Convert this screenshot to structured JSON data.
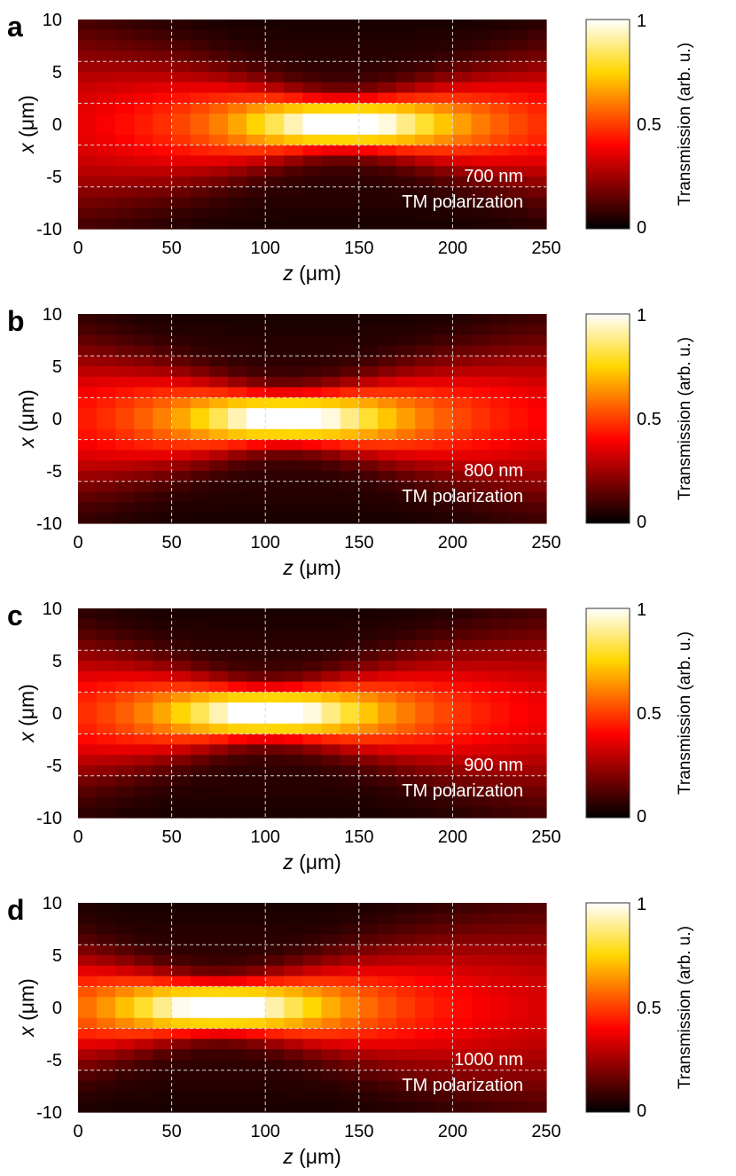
{
  "colorbar_label": "Transmission (arb. u.)",
  "x_axis_label_var": "z",
  "x_axis_label_unit": "(μm)",
  "y_axis_label_var": "x",
  "y_axis_label_unit": "(μm)",
  "colors": {
    "colormap": [
      "#000000",
      "#ff0000",
      "#ffd700",
      "#ffffff"
    ],
    "grid": "#d9d9d9",
    "text": "#000000"
  },
  "chart_data": [
    {
      "panel": "a",
      "type": "heatmap",
      "title": "",
      "xlabel": "z (μm)",
      "ylabel": "x (μm)",
      "xlim": [
        0,
        250
      ],
      "ylim": [
        -10,
        10
      ],
      "x_ticks": [
        0,
        50,
        100,
        150,
        200,
        250
      ],
      "y_ticks": [
        -10,
        -5,
        0,
        5,
        10
      ],
      "x_tick_labels": [
        "0",
        "50",
        "100",
        "150",
        "200",
        "250"
      ],
      "y_tick_labels": [
        "-10",
        "-5",
        "0",
        "5",
        "10"
      ],
      "grid_lines_x": [
        50,
        100,
        150,
        200
      ],
      "grid_lines_y": [
        -6,
        -2,
        2,
        6
      ],
      "focus_z_um": 141,
      "peak_transmission": 1,
      "wavelength_label": "700 nm",
      "polarization_label": "TM polarization",
      "colorbar": {
        "range": [
          0,
          1
        ],
        "ticks": [
          "1",
          "0.5",
          "0"
        ]
      }
    },
    {
      "panel": "b",
      "type": "heatmap",
      "title": "",
      "xlabel": "z (μm)",
      "ylabel": "x (μm)",
      "xlim": [
        0,
        250
      ],
      "ylim": [
        -10,
        10
      ],
      "x_ticks": [
        0,
        50,
        100,
        150,
        200,
        250
      ],
      "y_ticks": [
        -10,
        -5,
        0,
        5,
        10
      ],
      "x_tick_labels": [
        "0",
        "50",
        "100",
        "150",
        "200",
        "250"
      ],
      "y_tick_labels": [
        "-10",
        "-5",
        "0",
        "5",
        "10"
      ],
      "grid_lines_x": [
        50,
        100,
        150,
        200
      ],
      "grid_lines_y": [
        -6,
        -2,
        2,
        6
      ],
      "focus_z_um": 111,
      "peak_transmission": 1,
      "wavelength_label": "800 nm",
      "polarization_label": "TM polarization",
      "colorbar": {
        "range": [
          0,
          1
        ],
        "ticks": [
          "1",
          "0.5",
          "0"
        ]
      }
    },
    {
      "panel": "c",
      "type": "heatmap",
      "title": "",
      "xlabel": "z (μm)",
      "ylabel": "x (μm)",
      "xlim": [
        0,
        250
      ],
      "ylim": [
        -10,
        10
      ],
      "x_ticks": [
        0,
        50,
        100,
        150,
        200,
        250
      ],
      "y_ticks": [
        -10,
        -5,
        0,
        5,
        10
      ],
      "x_tick_labels": [
        "0",
        "50",
        "100",
        "150",
        "200",
        "250"
      ],
      "y_tick_labels": [
        "-10",
        "-5",
        "0",
        "5",
        "10"
      ],
      "grid_lines_x": [
        50,
        100,
        150,
        200
      ],
      "grid_lines_y": [
        -6,
        -2,
        2,
        6
      ],
      "focus_z_um": 101,
      "peak_transmission": 1,
      "wavelength_label": "900 nm",
      "polarization_label": "TM polarization",
      "colorbar": {
        "range": [
          0,
          1
        ],
        "ticks": [
          "1",
          "0.5",
          "0"
        ]
      }
    },
    {
      "panel": "d",
      "type": "heatmap",
      "title": "",
      "xlabel": "z (μm)",
      "ylabel": "x (μm)",
      "xlim": [
        0,
        250
      ],
      "ylim": [
        -10,
        10
      ],
      "x_ticks": [
        0,
        50,
        100,
        150,
        200,
        250
      ],
      "y_ticks": [
        -10,
        -5,
        0,
        5,
        10
      ],
      "x_tick_labels": [
        "0",
        "50",
        "100",
        "150",
        "200",
        "250"
      ],
      "y_tick_labels": [
        "-10",
        "-5",
        "0",
        "5",
        "10"
      ],
      "grid_lines_x": [
        50,
        100,
        150,
        200
      ],
      "grid_lines_y": [
        -6,
        -2,
        2,
        6
      ],
      "focus_z_um": 75,
      "peak_transmission": 1,
      "wavelength_label": "1000 nm",
      "polarization_label": "TM polarization",
      "colorbar": {
        "range": [
          0,
          1
        ],
        "ticks": [
          "1",
          "0.5",
          "0"
        ]
      }
    }
  ]
}
